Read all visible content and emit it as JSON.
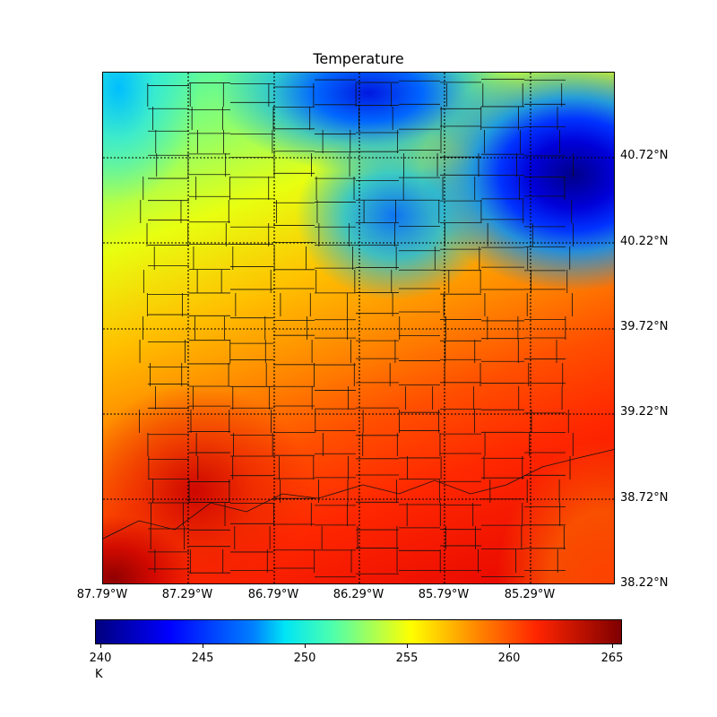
{
  "figure": {
    "title": "Temperature"
  },
  "map": {
    "latitude_labels": [
      "40.72°N",
      "40.22°N",
      "39.72°N",
      "39.22°N",
      "38.72°N",
      "38.22°N"
    ],
    "longitude_labels": [
      "87.79°W",
      "87.29°W",
      "86.79°W",
      "86.29°W",
      "85.79°W",
      "85.29°W"
    ],
    "lat_range": [
      38.22,
      41.22
    ],
    "lon_range": [
      -87.79,
      -84.79
    ],
    "field_colormap": "jet",
    "warm_region": "southwest",
    "cold_region": "northeast"
  },
  "colorbar": {
    "ticks": [
      "240",
      "245",
      "250",
      "255",
      "260",
      "265"
    ],
    "range": [
      240,
      265.3
    ],
    "unit": "K",
    "colors": {
      "min": "#00007f",
      "low": "#0000ff",
      "mid_low": "#00e5f5",
      "mid": "#ffff00",
      "high": "#ff2400",
      "max": "#7f0000"
    }
  }
}
